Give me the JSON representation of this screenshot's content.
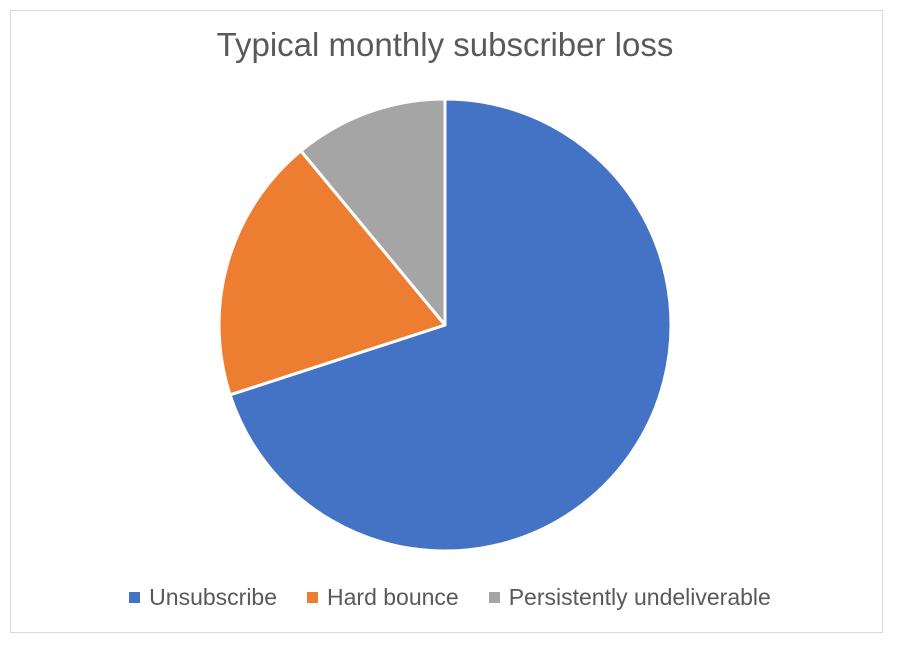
{
  "chart_data": {
    "type": "pie",
    "title": "Typical monthly subscriber loss",
    "categories": [
      "Unsubscribe",
      "Hard bounce",
      "Persistently undeliverable"
    ],
    "values": [
      70,
      19,
      11
    ],
    "colors": [
      "#4472C4",
      "#ED7D31",
      "#A5A5A5"
    ],
    "start_angle_deg": 0,
    "direction": "clockwise",
    "legend": "bottom"
  }
}
